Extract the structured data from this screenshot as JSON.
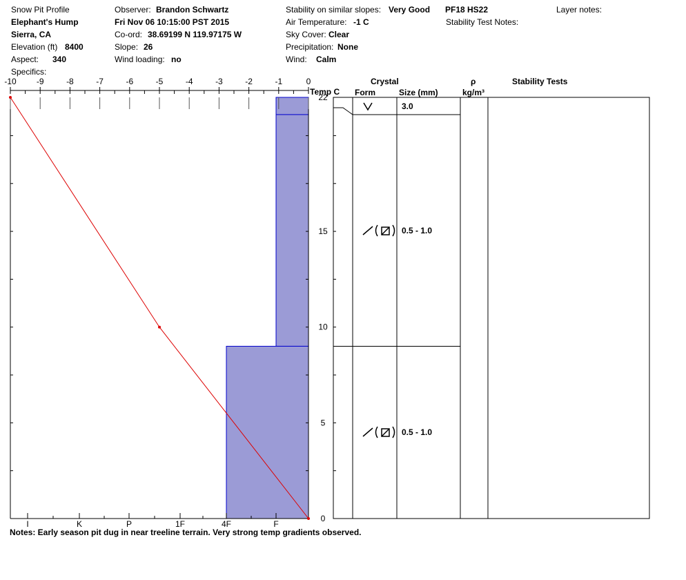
{
  "header": {
    "title": "Snow Pit Profile",
    "location_name": "Elephant's Hump",
    "region": "Sierra, CA",
    "elevation_label": "Elevation (ft)",
    "elevation_value": "8400",
    "aspect_label": "Aspect:",
    "aspect_value": "340",
    "specifics_label": "Specifics:",
    "observer_label": "Observer:",
    "observer_value": "Brandon Schwartz",
    "datetime": "Fri Nov 06 10:15:00 PST 2015",
    "coord_label": "Co-ord:",
    "coord_value": "38.69199 N 119.97175 W",
    "slope_label": "Slope:",
    "slope_value": "26",
    "wind_loading_label": "Wind loading:",
    "wind_loading_value": "no",
    "stability_label": "Stability on similar slopes:",
    "stability_value": "Very Good",
    "air_temp_label": "Air Temperature:",
    "air_temp_value": "-1 C",
    "sky_label": "Sky Cover:",
    "sky_value": "Clear",
    "precip_label": "Precipitation:",
    "precip_value": "None",
    "wind_label": "Wind:",
    "wind_value": "Calm",
    "pf_hs": "PF18 HS22",
    "stability_test_notes_label": "Stability Test Notes:",
    "layer_notes_label": "Layer notes:"
  },
  "columns": {
    "temp_axis_label": "Temp C",
    "crystal": "Crystal",
    "form": "Form",
    "size": "Size (mm)",
    "rho": "ρ",
    "density_unit": "kg/m³",
    "stability_tests": "Stability Tests"
  },
  "notes": "Notes:  Early season pit dug in near treeline terrain. Very strong temp gradients observed.",
  "chart_data": {
    "type": "line",
    "temperature_axis": {
      "label": "Temp C",
      "range": [
        -10,
        0
      ],
      "ticks": [
        -10,
        -9,
        -8,
        -7,
        -6,
        -5,
        -4,
        -3,
        -2,
        -1,
        0
      ]
    },
    "height_axis": {
      "range": [
        0,
        22
      ],
      "ticks": [
        0,
        5,
        10,
        15,
        22
      ]
    },
    "hardness_axis": {
      "ticks": [
        "I",
        "K",
        "P",
        "1F",
        "4F",
        "F"
      ]
    },
    "temperature_profile": [
      {
        "height": 22,
        "temp": -10
      },
      {
        "height": 10,
        "temp": -5
      },
      {
        "height": 0,
        "temp": 0
      }
    ],
    "layers": [
      {
        "top": 22,
        "bottom": 21.1,
        "hardness": "F",
        "form": "V",
        "size": "3.0"
      },
      {
        "top": 21.1,
        "bottom": 9,
        "hardness": "F",
        "form": "/(⊠)",
        "size": "0.5 - 1.0"
      },
      {
        "top": 9,
        "bottom": 0,
        "hardness": "4F",
        "form": "/(⊠)",
        "size": "0.5 - 1.0"
      }
    ],
    "colors": {
      "hardness_fill": "#9b9bd6",
      "hardness_edge": "#0000cc",
      "temp_line": "#dd0000"
    }
  }
}
